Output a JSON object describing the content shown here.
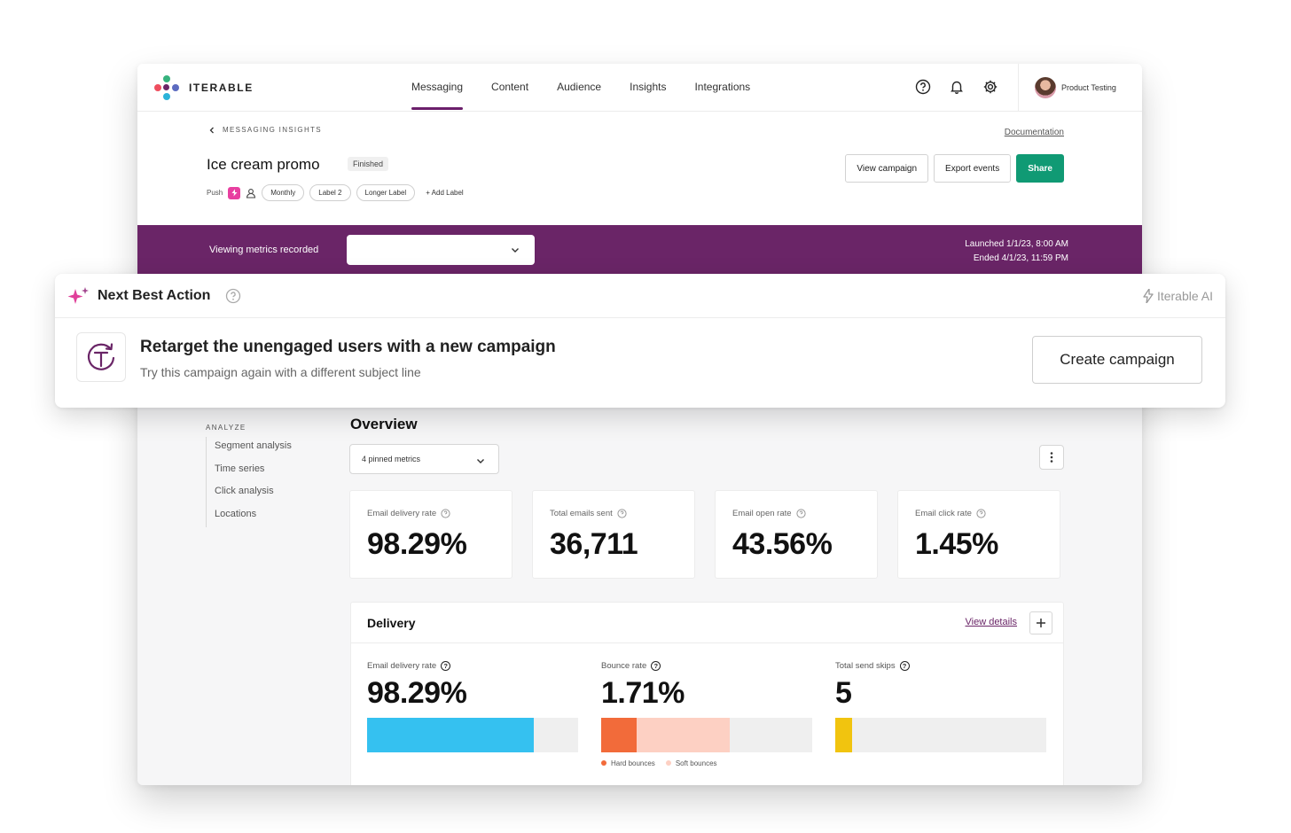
{
  "brand": {
    "name": "ITERABLE"
  },
  "nav": {
    "items": [
      {
        "label": "Messaging",
        "active": true
      },
      {
        "label": "Content"
      },
      {
        "label": "Audience"
      },
      {
        "label": "Insights"
      },
      {
        "label": "Integrations"
      }
    ],
    "icons": [
      "help-icon",
      "bell-icon",
      "gear-icon"
    ],
    "user": "Product Testing"
  },
  "header": {
    "breadcrumb": "MESSAGING INSIGHTS",
    "documentation": "Documentation",
    "title": "Ice cream promo",
    "status": "Finished",
    "channel": "Push",
    "labels": [
      "Monthly",
      "Label 2",
      "Longer Label"
    ],
    "add_label": "+ Add Label",
    "buttons": {
      "view": "View campaign",
      "export": "Export events",
      "share": "Share"
    }
  },
  "metrics_bar": {
    "label": "Viewing metrics recorded",
    "select_value": "",
    "launched": "Launched 1/1/23, 8:00 AM",
    "ended": "Ended 4/1/23, 11:59 PM"
  },
  "next_best_action": {
    "title": "Next Best Action",
    "brand": "Iterable AI",
    "headline": "Retarget the unengaged users with a new campaign",
    "subtext": "Try this campaign again with a different subject line",
    "button": "Create campaign"
  },
  "analyze": {
    "title": "ANALYZE",
    "items": [
      "Segment analysis",
      "Time series",
      "Click analysis",
      "Locations"
    ]
  },
  "overview": {
    "title": "Overview",
    "pinned": "4 pinned metrics",
    "cards": [
      {
        "label": "Email delivery rate",
        "value": "98.29%"
      },
      {
        "label": "Total emails sent",
        "value": "36,711"
      },
      {
        "label": "Email open rate",
        "value": "43.56%"
      },
      {
        "label": "Email click rate",
        "value": "1.45%"
      }
    ]
  },
  "delivery": {
    "title": "Delivery",
    "view_details": "View details",
    "columns": [
      {
        "label": "Email delivery rate",
        "value": "98.29%",
        "bar": [
          {
            "fraction": 0.79,
            "color": "#35c1f0"
          }
        ]
      },
      {
        "label": "Bounce rate",
        "value": "1.71%",
        "bar": [
          {
            "fraction": 0.17,
            "color": "#f26b3a"
          },
          {
            "fraction": 0.44,
            "color": "#fdd0c3"
          }
        ]
      },
      {
        "label": "Total send skips",
        "value": "5",
        "bar": [
          {
            "fraction": 0.08,
            "color": "#f1c40f"
          }
        ]
      }
    ],
    "legend": [
      {
        "label": "Hard bounces",
        "color": "#f26b3a"
      },
      {
        "label": "Soft bounces",
        "color": "#fdd0c3"
      }
    ]
  },
  "colors": {
    "accent": "#6a2567",
    "primary_button": "#109a74"
  }
}
